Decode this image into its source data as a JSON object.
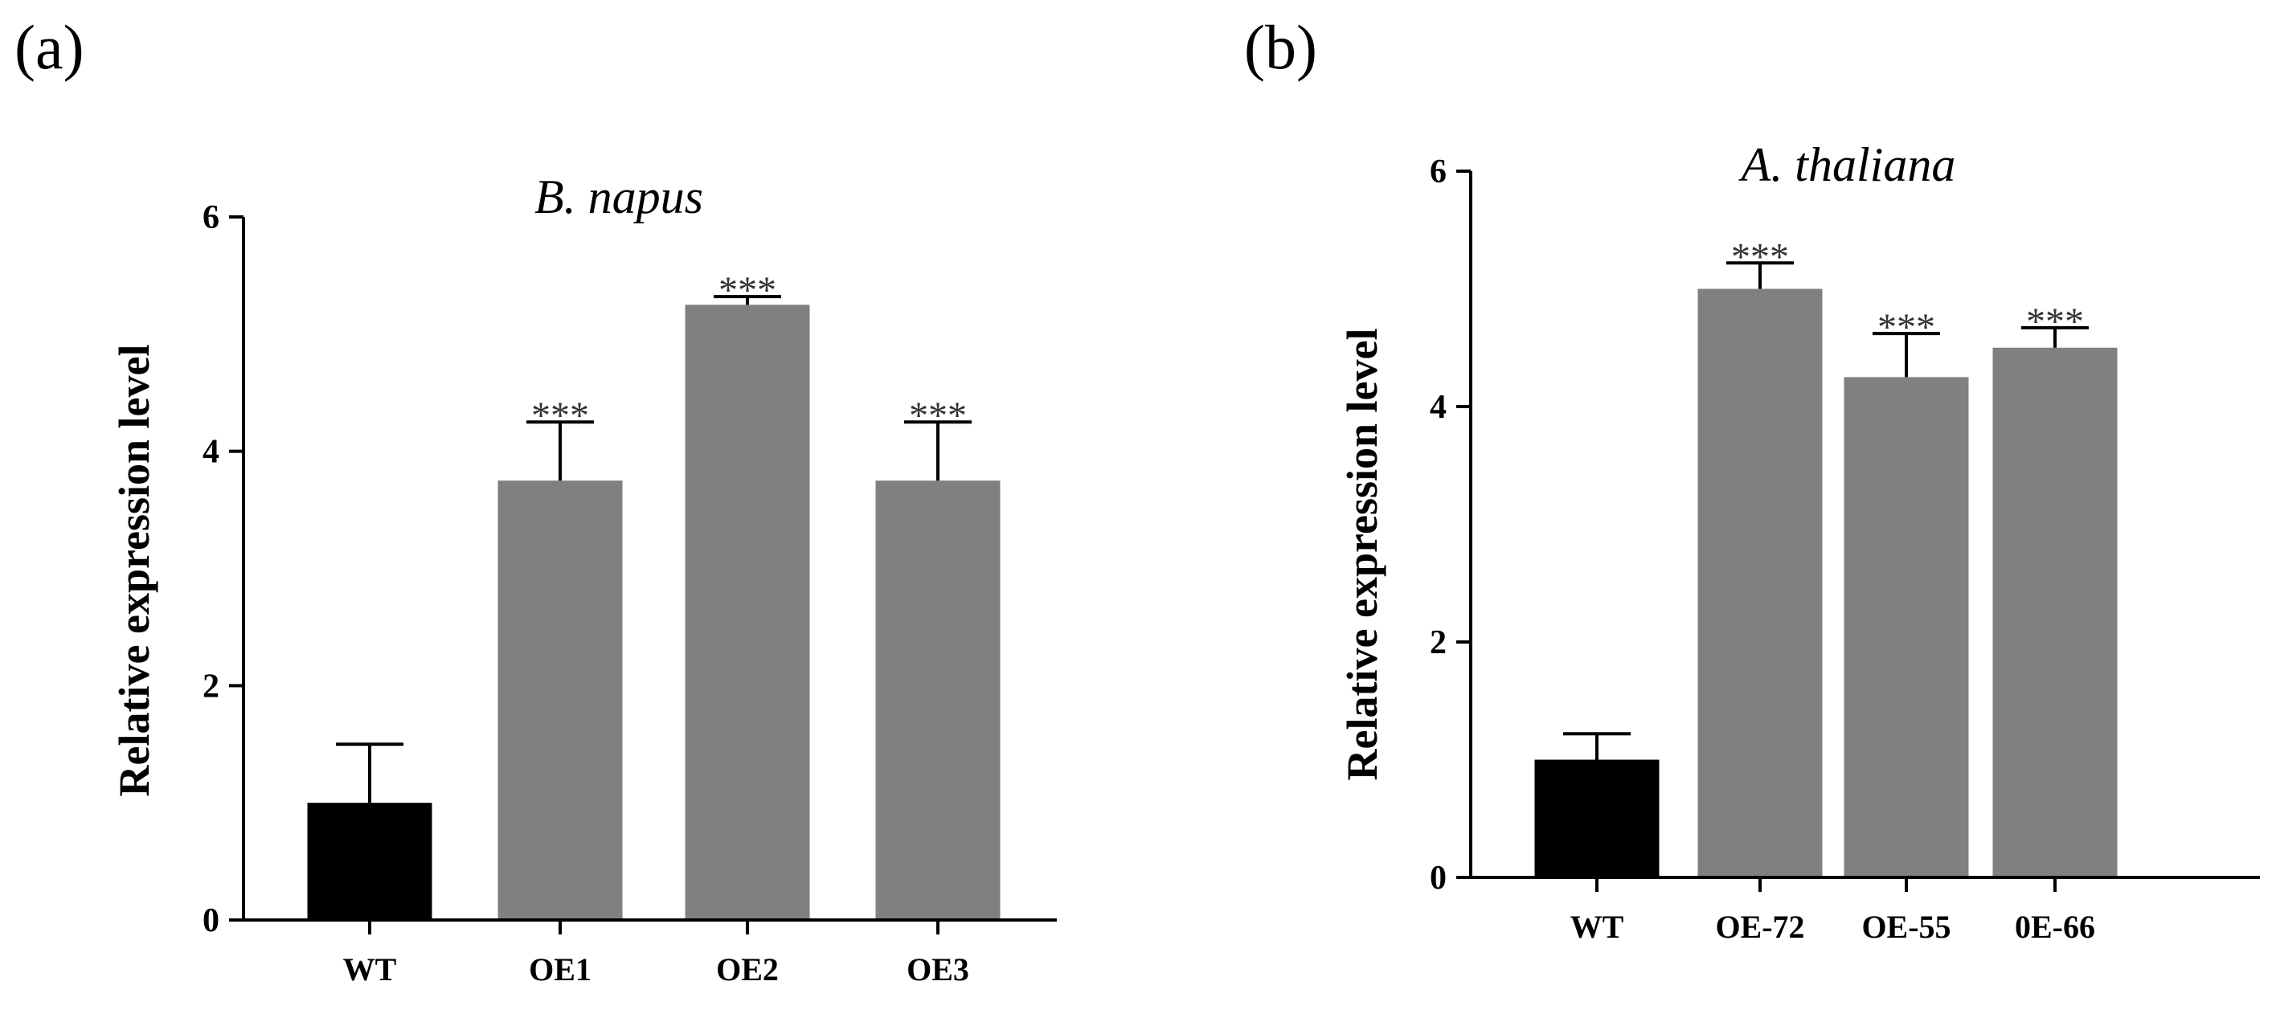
{
  "chart_data": [
    {
      "type": "bar",
      "panel_label": "(a)",
      "title": "B. napus",
      "xlabel": "",
      "ylabel": "Relative expression level",
      "ylim": [
        0,
        6
      ],
      "yticks": [
        "0",
        "2",
        "4",
        "6"
      ],
      "categories": [
        "WT",
        "OE1",
        "OE2",
        "OE3"
      ],
      "values": [
        1.0,
        3.75,
        5.25,
        3.75
      ],
      "errors": [
        0.5,
        0.5,
        0.07,
        0.5
      ],
      "significance": [
        "",
        "***",
        "***",
        "***"
      ],
      "colors": [
        "#000000",
        "#808080",
        "#808080",
        "#808080"
      ]
    },
    {
      "type": "bar",
      "panel_label": "(b)",
      "title": "A. thaliana",
      "xlabel": "",
      "ylabel": "Relative expression level",
      "ylim": [
        0,
        6
      ],
      "yticks": [
        "0",
        "2",
        "4",
        "6"
      ],
      "categories": [
        "WT",
        "OE-72",
        "OE-55",
        "0E-66"
      ],
      "values": [
        1.0,
        5.0,
        4.25,
        4.5
      ],
      "errors": [
        0.22,
        0.22,
        0.37,
        0.17
      ],
      "significance": [
        "",
        "***",
        "***",
        "***"
      ],
      "colors": [
        "#000000",
        "#808080",
        "#808080",
        "#808080"
      ]
    }
  ]
}
